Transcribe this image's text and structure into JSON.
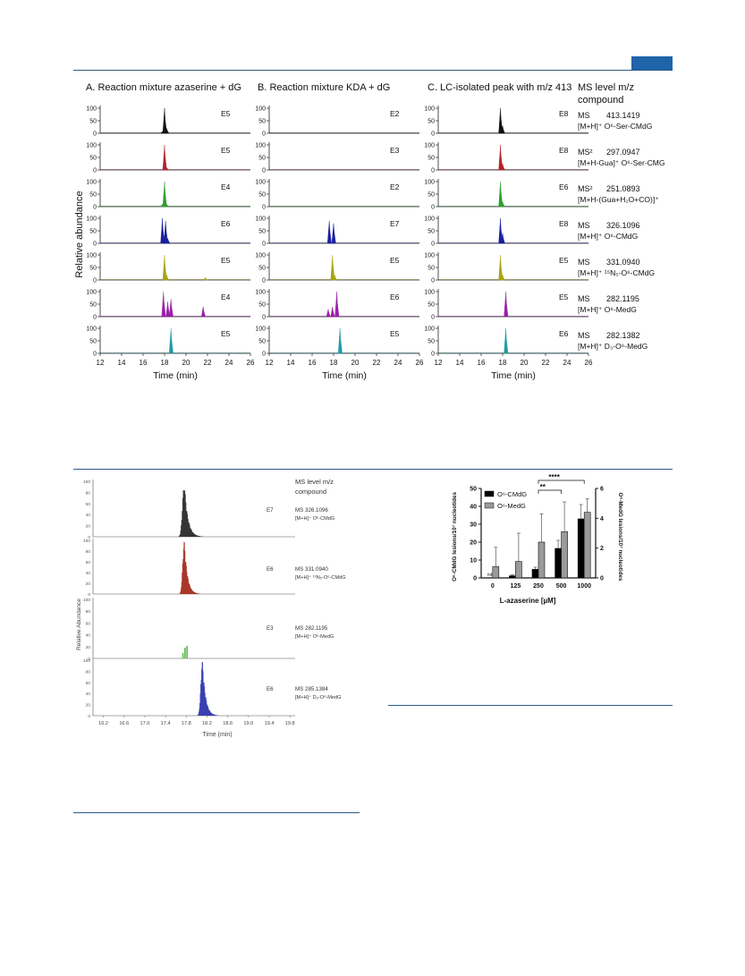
{
  "figure_top": {
    "panel_titles": [
      "A. Reaction mixture azaserine + dG",
      "B. Reaction mixture KDA + dG",
      "C. LC-isolated peak with m/z 413"
    ],
    "legend_header": {
      "line1": "MS level   m/z",
      "line2": "compound"
    },
    "y_axis_label": "Relative abundance",
    "x_axis_label": "Time (min)",
    "x_ticks": [
      "12",
      "14",
      "16",
      "18",
      "20",
      "22",
      "24",
      "26"
    ],
    "y_ticks": [
      "100",
      "50",
      "0"
    ],
    "rows": [
      {
        "level": "MS",
        "mz": "413.1419",
        "compound": "[M+H]⁺ O⁶-Ser-CMdG",
        "color": "#111111",
        "e": [
          "E5",
          "E2",
          "E8"
        ],
        "peaks": [
          [
            [
              17.8,
              8
            ],
            [
              18.0,
              100
            ],
            [
              18.2,
              20
            ]
          ],
          [],
          [
            [
              17.8,
              100
            ],
            [
              18.0,
              30
            ]
          ]
        ]
      },
      {
        "level": "MS²",
        "mz": "297.0947",
        "compound": "[M+H-Gua]⁺ O⁶-Ser-CMG",
        "color": "#b3232e",
        "e": [
          "E5",
          "E3",
          "E8"
        ],
        "peaks": [
          [
            [
              18.0,
              100
            ],
            [
              18.2,
              10
            ]
          ],
          [],
          [
            [
              17.8,
              100
            ],
            [
              18.0,
              25
            ]
          ]
        ]
      },
      {
        "level": "MS²",
        "mz": "251.0893",
        "compound": "[M+H-(Gua+H₂O+CO)]⁺",
        "color": "#2f9e2f",
        "e": [
          "E4",
          "E2",
          "E6"
        ],
        "peaks": [
          [
            [
              17.8,
              10
            ],
            [
              18.0,
              100
            ],
            [
              18.2,
              10
            ]
          ],
          [],
          [
            [
              17.8,
              100
            ],
            [
              18.0,
              20
            ]
          ]
        ]
      },
      {
        "level": "MS",
        "mz": "326.1096",
        "compound": "[M+H]⁺ O⁶-CMdG",
        "color": "#1a1fa0",
        "e": [
          "E6",
          "E7",
          "E8"
        ],
        "peaks": [
          [
            [
              17.8,
              100
            ],
            [
              18.1,
              90
            ],
            [
              18.3,
              20
            ]
          ],
          [
            [
              17.6,
              90
            ],
            [
              18.0,
              80
            ]
          ],
          [
            [
              17.8,
              100
            ],
            [
              18.0,
              40
            ]
          ]
        ]
      },
      {
        "level": "MS",
        "mz": "331.0940",
        "compound": "[M+H]⁺ ¹⁵N₅-O⁶-CMdG",
        "color": "#a8a414",
        "e": [
          "E5",
          "E5",
          "E5"
        ],
        "peaks": [
          [
            [
              18.0,
              100
            ],
            [
              18.2,
              20
            ],
            [
              21.8,
              10
            ]
          ],
          [
            [
              17.9,
              100
            ],
            [
              18.1,
              20
            ]
          ],
          [
            [
              17.8,
              100
            ],
            [
              18.0,
              20
            ]
          ]
        ]
      },
      {
        "level": "MS",
        "mz": "282.1195",
        "compound": "[M+H]⁺ O⁶-MedG",
        "color": "#9b1fa8",
        "e": [
          "E4",
          "E6",
          "E5"
        ],
        "peaks": [
          [
            [
              17.9,
              100
            ],
            [
              18.3,
              60
            ],
            [
              18.6,
              70
            ],
            [
              21.6,
              40
            ]
          ],
          [
            [
              17.5,
              30
            ],
            [
              17.9,
              40
            ],
            [
              18.3,
              100
            ]
          ],
          [
            [
              18.3,
              100
            ]
          ]
        ]
      },
      {
        "level": "MS",
        "mz": "282.1382",
        "compound": "[M+H]⁺ D₃-O⁶-MedG",
        "color": "#1f9aa3",
        "e": [
          "E5",
          "E5",
          "E6"
        ],
        "peaks": [
          [
            [
              18.6,
              100
            ]
          ],
          [
            [
              18.6,
              100
            ]
          ],
          [
            [
              18.3,
              100
            ]
          ]
        ]
      }
    ]
  },
  "figure_left": {
    "legend_header": {
      "line1": "MS level   m/z",
      "line2": "compound"
    },
    "y_axis_label": "Relative Abundance",
    "x_axis_label": "Time (min)",
    "x_ticks": [
      "16.2",
      "16.6",
      "17.0",
      "17.4",
      "17.8",
      "18.2",
      "18.6",
      "19.0",
      "19.4",
      "19.8"
    ],
    "y_ticks": [
      "100",
      "80",
      "60",
      "40",
      "20",
      "0"
    ],
    "rows": [
      {
        "e": "E7",
        "ms": "MS  326.1096",
        "compound": "[M+H]⁺ O⁶-CMdG",
        "color": "#333333",
        "center": 17.75,
        "spread": 0.16
      },
      {
        "e": "E6",
        "ms": "MS  331.0940",
        "compound": "[M+H]⁺ ¹⁵N₅-O⁶-CMdG",
        "color": "#a8362a",
        "center": 17.75,
        "spread": 0.14
      },
      {
        "e": "E3",
        "ms": "MS  282.1195",
        "compound": "[M+H]⁺ O⁶-MedG",
        "color": "#6abf5a",
        "center": 17.78,
        "spread": 0.0,
        "small": true
      },
      {
        "e": "E6",
        "ms": "MS  285.1384",
        "compound": "[M+H]⁺ D₃-O⁶-MedG",
        "color": "#3a3fb0",
        "center": 18.1,
        "spread": 0.14
      }
    ]
  },
  "chart_data": {
    "type": "bar",
    "categories": [
      "0",
      "125",
      "250",
      "500",
      "1000"
    ],
    "xlabel": "L-azaserine [µM]",
    "ylabel": "O⁶-CMdG lesions/10⁷ nucleotides",
    "y2label": "O⁶-MedG lesions/10⁷ nucleotides",
    "ylim": [
      0,
      50
    ],
    "y2lim": [
      0,
      6
    ],
    "y_ticks": [
      "0",
      "10",
      "20",
      "30",
      "40",
      "50"
    ],
    "y2_ticks": [
      "0",
      "2",
      "4",
      "6"
    ],
    "series": [
      {
        "name": "O⁶-CMdG",
        "axis": "left",
        "color": "#000000",
        "values": [
          0,
          1.2,
          4.8,
          16.5,
          33
        ],
        "errors": [
          0,
          0.6,
          1.2,
          4.5,
          8
        ]
      },
      {
        "name": "O⁶-MedG",
        "axis": "right",
        "color": "#9a9a9a",
        "values": [
          0.75,
          1.1,
          2.4,
          3.1,
          4.4
        ],
        "errors": [
          1.3,
          1.9,
          1.9,
          2.0,
          0.9
        ]
      }
    ],
    "annotations": [
      {
        "label": "nd",
        "category": "0"
      },
      {
        "label": "**",
        "from": "250",
        "to": "500"
      },
      {
        "label": "****",
        "from": "250",
        "to": "1000"
      }
    ],
    "legend": "top-left"
  }
}
